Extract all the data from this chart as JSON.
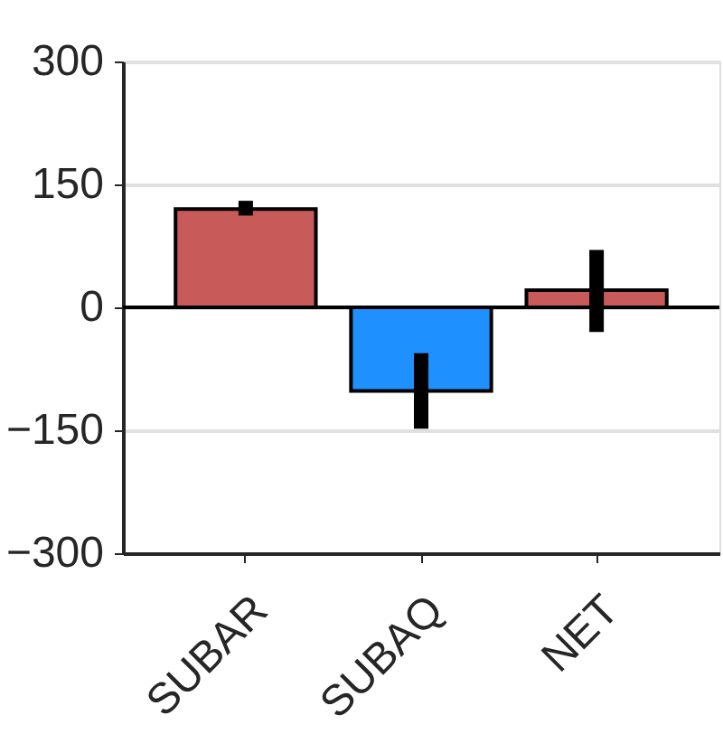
{
  "chart_data": {
    "type": "bar",
    "categories": [
      "SUBAR",
      "SUBAQ",
      "NET"
    ],
    "values": [
      120,
      -102,
      21
    ],
    "colors": [
      "#c85a5a",
      "#1e90ff",
      "#c85a5a"
    ],
    "errors": [
      [
        112,
        130
      ],
      [
        -148,
        -56
      ],
      [
        -30,
        70
      ]
    ],
    "ylim": [
      -300,
      300
    ],
    "yticks": [
      -300,
      -150,
      0,
      150,
      300
    ],
    "ref_lines": [
      {
        "axis": "y",
        "value": 0,
        "color": "#000000"
      }
    ],
    "grid": true
  }
}
